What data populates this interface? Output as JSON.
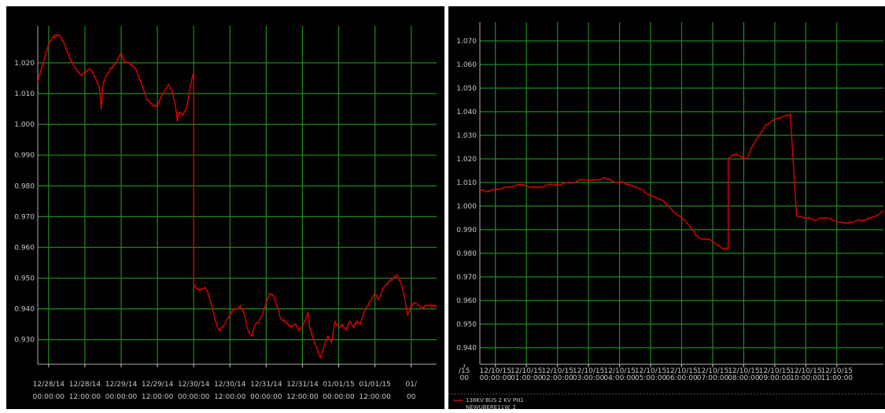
{
  "chart_data": [
    {
      "type": "line",
      "title": "",
      "xlabel": "",
      "ylabel": "",
      "ylim": [
        0.922,
        1.032
      ],
      "y_ticks": [
        "1.020",
        "1.010",
        "1.000",
        "0.990",
        "0.980",
        "0.970",
        "0.960",
        "0.950",
        "0.940",
        "0.930"
      ],
      "x_range": [
        0,
        11
      ],
      "x_ticks": [
        {
          "date": "12/28/14",
          "time": "00:00:00"
        },
        {
          "date": "12/28/14",
          "time": "12:00:00"
        },
        {
          "date": "12/29/14",
          "time": "00:00:00"
        },
        {
          "date": "12/29/14",
          "time": "12:00:00"
        },
        {
          "date": "12/30/14",
          "time": "00:00:00"
        },
        {
          "date": "12/30/14",
          "time": "12:00:00"
        },
        {
          "date": "12/31/14",
          "time": "00:00:00"
        },
        {
          "date": "12/31/14",
          "time": "12:00:00"
        },
        {
          "date": "01/01/15",
          "time": "00:00:00"
        },
        {
          "date": "01/01/15",
          "time": "12:00:00"
        },
        {
          "date": "01/",
          "time": "00"
        }
      ],
      "x_tick_positions": [
        0.3,
        1.3,
        2.3,
        3.3,
        4.3,
        5.3,
        6.3,
        7.3,
        8.3,
        9.3,
        10.3
      ],
      "grid": true,
      "series": [
        {
          "color": "#e00000",
          "x": [
            0,
            0.1,
            0.2,
            0.3,
            0.4,
            0.5,
            0.6,
            0.7,
            0.8,
            0.9,
            1.0,
            1.1,
            1.2,
            1.3,
            1.45,
            1.6,
            1.7,
            1.75,
            1.8,
            1.9,
            2.0,
            2.1,
            2.2,
            2.3,
            2.4,
            2.5,
            2.6,
            2.7,
            2.8,
            2.9,
            3.0,
            3.1,
            3.2,
            3.3,
            3.4,
            3.5,
            3.6,
            3.7,
            3.8,
            3.85,
            3.9,
            4.0,
            4.1,
            4.2,
            4.3,
            4.3,
            4.35,
            4.45,
            4.6,
            4.7,
            4.8,
            4.9,
            5.0,
            5.1,
            5.2,
            5.3,
            5.4,
            5.5,
            5.6,
            5.7,
            5.8,
            5.9,
            6.0,
            6.1,
            6.2,
            6.3,
            6.4,
            6.5,
            6.6,
            6.7,
            6.8,
            6.9,
            7.0,
            7.1,
            7.2,
            7.3,
            7.4,
            7.45,
            7.5,
            7.6,
            7.7,
            7.8,
            7.9,
            8.0,
            8.1,
            8.2,
            8.3,
            8.4,
            8.5,
            8.6,
            8.7,
            8.8,
            8.9,
            9.0,
            9.1,
            9.2,
            9.3,
            9.4,
            9.5,
            9.6,
            9.7,
            9.8,
            9.9,
            10.0,
            10.1,
            10.2,
            10.3,
            10.4,
            10.5,
            10.6,
            10.7,
            10.8,
            10.9,
            11.0
          ],
          "values": [
            1.014,
            1.018,
            1.022,
            1.026,
            1.028,
            1.029,
            1.029,
            1.027,
            1.024,
            1.021,
            1.019,
            1.017,
            1.016,
            1.017,
            1.018,
            1.015,
            1.012,
            1.005,
            1.013,
            1.016,
            1.018,
            1.019,
            1.021,
            1.023,
            1.02,
            1.02,
            1.019,
            1.018,
            1.015,
            1.012,
            1.008,
            1.007,
            1.006,
            1.006,
            1.009,
            1.011,
            1.013,
            1.011,
            1.006,
            1.001,
            1.004,
            1.003,
            1.005,
            1.012,
            1.017,
            0.948,
            0.947,
            0.946,
            0.947,
            0.945,
            0.941,
            0.936,
            0.933,
            0.934,
            0.936,
            0.938,
            0.94,
            0.94,
            0.941,
            0.938,
            0.933,
            0.931,
            0.935,
            0.936,
            0.938,
            0.942,
            0.945,
            0.944,
            0.941,
            0.937,
            0.936,
            0.935,
            0.934,
            0.935,
            0.933,
            0.934,
            0.937,
            0.939,
            0.934,
            0.93,
            0.927,
            0.924,
            0.928,
            0.931,
            0.929,
            0.936,
            0.934,
            0.935,
            0.933,
            0.936,
            0.934,
            0.936,
            0.935,
            0.939,
            0.941,
            0.943,
            0.945,
            0.943,
            0.946,
            0.948,
            0.949,
            0.95,
            0.951,
            0.949,
            0.945,
            0.938,
            0.941,
            0.942,
            0.941,
            0.94,
            0.941,
            0.941,
            0.941,
            0.941
          ]
        }
      ]
    },
    {
      "type": "line",
      "title": "",
      "xlabel": "",
      "ylabel": "",
      "ylim": [
        0.933,
        1.078
      ],
      "y_ticks": [
        "1.070",
        "1.060",
        "1.050",
        "1.040",
        "1.030",
        "1.020",
        "1.010",
        "1.000",
        "0.990",
        "0.980",
        "0.970",
        "0.960",
        "0.950",
        "0.940"
      ],
      "x_range": [
        0,
        13
      ],
      "x_ticks": [
        {
          "date": "/15",
          "time": "00"
        },
        {
          "date": "12/10/15",
          "time": "00:00:00"
        },
        {
          "date": "12/10/15",
          "time": "01:00:00"
        },
        {
          "date": "12/10/15",
          "time": "02:00:00"
        },
        {
          "date": "12/10/15",
          "time": "03:00:00"
        },
        {
          "date": "12/10/15",
          "time": "04:00:00"
        },
        {
          "date": "12/10/15",
          "time": "05:00:00"
        },
        {
          "date": "12/10/15",
          "time": "06:00:00"
        },
        {
          "date": "12/10/15",
          "time": "07:00:00"
        },
        {
          "date": "12/10/15",
          "time": "08:00:00"
        },
        {
          "date": "12/10/15",
          "time": "09:00:00"
        },
        {
          "date": "12/10/15",
          "time": "10:00:00"
        },
        {
          "date": "12/10/15",
          "time": "11:00:00"
        }
      ],
      "x_tick_positions": [
        -0.5,
        0.5,
        1.5,
        2.5,
        3.5,
        4.5,
        5.5,
        6.5,
        7.5,
        8.5,
        9.5,
        10.5,
        11.5
      ],
      "grid": true,
      "legend": {
        "placement": "bottom-left",
        "entries": [
          {
            "name": "138KV BUS 2 KV PH1",
            "color": "#e00000"
          }
        ],
        "extra_text": "NEWUBERE11W_2"
      },
      "series": [
        {
          "name": "138KV BUS 2 KV PH1",
          "color": "#e00000",
          "x": [
            0,
            0.2,
            0.4,
            0.6,
            0.8,
            1.0,
            1.2,
            1.4,
            1.6,
            1.8,
            2.0,
            2.2,
            2.4,
            2.6,
            2.8,
            3.0,
            3.2,
            3.4,
            3.6,
            3.8,
            4.0,
            4.2,
            4.4,
            4.6,
            4.8,
            5.0,
            5.2,
            5.4,
            5.6,
            5.8,
            6.0,
            6.2,
            6.4,
            6.6,
            6.8,
            7.0,
            7.2,
            7.4,
            7.6,
            7.8,
            8.0,
            8.0,
            8.2,
            8.4,
            8.6,
            8.8,
            9.0,
            9.2,
            9.4,
            9.6,
            9.8,
            10.0,
            10.2,
            10.4,
            10.6,
            10.8,
            11.0,
            11.2,
            11.4,
            11.6,
            11.8,
            12.0,
            12.2,
            12.4,
            12.6,
            12.8,
            13.0
          ],
          "values": [
            1.007,
            1.006,
            1.007,
            1.007,
            1.008,
            1.008,
            1.009,
            1.009,
            1.008,
            1.008,
            1.008,
            1.009,
            1.009,
            1.009,
            1.01,
            1.01,
            1.011,
            1.011,
            1.011,
            1.011,
            1.012,
            1.011,
            1.01,
            1.01,
            1.009,
            1.008,
            1.007,
            1.005,
            1.004,
            1.003,
            1.001,
            0.998,
            0.996,
            0.994,
            0.991,
            0.987,
            0.986,
            0.986,
            0.984,
            0.982,
            0.982,
            1.02,
            1.022,
            1.021,
            1.02,
            1.026,
            1.03,
            1.034,
            1.036,
            1.037,
            1.038,
            1.039,
            0.996,
            0.995,
            0.995,
            0.994,
            0.995,
            0.995,
            0.994,
            0.993,
            0.993,
            0.993,
            0.994,
            0.994,
            0.995,
            0.996,
            0.998
          ]
        }
      ]
    }
  ]
}
